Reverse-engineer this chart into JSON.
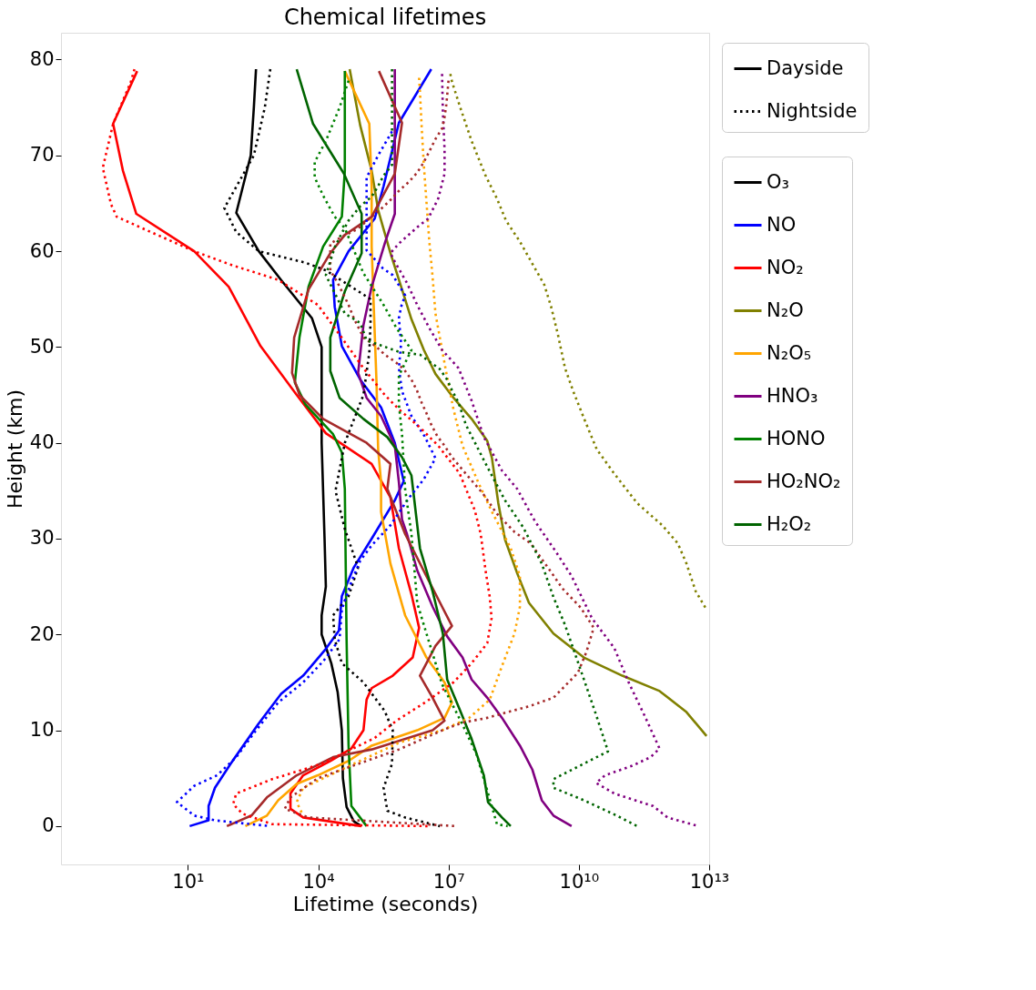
{
  "chart_data": {
    "type": "line",
    "title": "Chemical lifetimes",
    "xlabel": "Lifetime (seconds)",
    "ylabel": "Height (km)",
    "log": "x",
    "grid": false,
    "legend": "right",
    "xlim": [
      0.012,
      10000000000000.0
    ],
    "xticks": [
      {
        "value": 10,
        "label": "10¹"
      },
      {
        "value": 10000.0,
        "label": "10⁴"
      },
      {
        "value": 10000000.0,
        "label": "10⁷"
      },
      {
        "value": 10000000000.0,
        "label": "10¹⁰"
      },
      {
        "value": 10000000000000.0,
        "label": "10¹³"
      }
    ],
    "ylim": [
      -4,
      82.8
    ],
    "yticks": [
      0,
      10,
      20,
      30,
      40,
      50,
      60,
      70,
      80
    ],
    "series": [
      {
        "name": "Dayside",
        "color": "#000000",
        "line_style": "solid"
      },
      {
        "name": "Nightside",
        "color": "#000000",
        "line_style": "dotted"
      },
      {
        "name": "O₃",
        "color": "#000000",
        "line_style": "solid",
        "x": [
          370,
          330,
          280,
          130,
          430,
          1400,
          7200,
          12000.0,
          12000.0,
          14000.0,
          15000.0,
          12000.0,
          12000.0,
          20000.0,
          28000.0,
          35000.0,
          37000.0,
          45000.0,
          66000.0,
          98000.0
        ],
        "values": [
          79,
          75,
          70,
          64,
          60,
          57,
          53,
          50,
          40,
          30,
          25,
          22,
          20,
          17,
          14,
          10,
          5,
          2,
          0.5,
          0
        ]
      },
      {
        "name": "NO",
        "color": "#0000ff",
        "line_style": "solid",
        "x": [
          4000000.0,
          720000.0,
          320000.0,
          200000.0,
          50000.0,
          22000.0,
          24000.0,
          35000.0,
          93000.0,
          280000.0,
          580000.0,
          930000.0,
          580000.0,
          170000.0,
          66000.0,
          35000.0,
          30000.0,
          15000.0,
          4500.0,
          1400.0,
          410,
          96,
          42,
          30,
          30,
          11
        ],
        "values": [
          79,
          73.4,
          66.8,
          63.4,
          60,
          57,
          54.2,
          50.1,
          46.6,
          43.7,
          40,
          36,
          34,
          30,
          27,
          24,
          20.4,
          18.5,
          15.7,
          13.8,
          10.6,
          6.5,
          4,
          2.1,
          0.6,
          0
        ]
      },
      {
        "name": "NO₂",
        "color": "#ff0000",
        "line_style": "solid",
        "x": [
          0.68,
          0.19,
          0.32,
          0.65,
          14,
          87,
          470,
          3200,
          15000.0,
          170000.0,
          460000.0,
          720000.0,
          1400000.0,
          2100000.0,
          1500000.0,
          520000.0,
          170000.0,
          130000.0,
          110000.0,
          58000.0,
          19000.0,
          4500.0,
          2300.0,
          2300.0,
          4500.0,
          98000.0
        ],
        "values": [
          78.8,
          73.3,
          68.4,
          63.9,
          60,
          56.3,
          50.1,
          45,
          41,
          37.8,
          34.3,
          29,
          24.2,
          20.7,
          17.6,
          15.7,
          14.4,
          13.2,
          10,
          8.1,
          6.8,
          5.3,
          3.4,
          1.8,
          0.9,
          0
        ]
      },
      {
        "name": "N₂O",
        "color": "#808000",
        "line_style": "solid",
        "x": [
          53000.0,
          93000.0,
          170000.0,
          240000.0,
          460000.0,
          850000.0,
          1400000.0,
          2700000.0,
          5000000.0,
          13000000.0,
          34000000.0,
          78000000.0,
          100000000.0,
          140000000.0,
          200000000.0,
          380000000.0,
          710000000.0,
          2600000000.0,
          13000000000.0,
          100000000000.0,
          720000000000.0,
          3000000000000.0,
          8700000000000.0
        ],
        "values": [
          79,
          73.1,
          68.4,
          64.3,
          59.8,
          56,
          52.9,
          49.7,
          47.2,
          44.7,
          42.5,
          40.2,
          38.4,
          33.7,
          29.9,
          26.4,
          23.3,
          20.1,
          17.6,
          15.7,
          14.1,
          11.9,
          9.4
        ]
      },
      {
        "name": "N₂O₅",
        "color": "#ffa500",
        "line_style": "solid",
        "x": [
          41000.0,
          150000.0,
          170000.0,
          170000.0,
          190000.0,
          220000.0,
          240000.0,
          280000.0,
          280000.0,
          460000.0,
          1000000.0,
          3100000.0,
          8100000.0,
          12000000.0,
          8100000.0,
          1900000.0,
          170000.0,
          50000.0,
          9800.0,
          3200.0,
          1200.0,
          660,
          210
        ],
        "values": [
          78.8,
          73.3,
          66.8,
          60.5,
          54.2,
          46.3,
          39.3,
          35.9,
          32.8,
          27.4,
          22,
          17.6,
          15,
          12.9,
          11.3,
          10,
          8.4,
          6.8,
          5.3,
          4.4,
          2.7,
          1.1,
          0
        ]
      },
      {
        "name": "HNO₃",
        "color": "#800080",
        "line_style": "solid",
        "x": [
          580000.0,
          580000.0,
          350000.0,
          170000.0,
          110000.0,
          83000.0,
          130000.0,
          280000.0,
          580000.0,
          720000.0,
          850000.0,
          1100000.0,
          1900000.0,
          4300000.0,
          9300000.0,
          21000000.0,
          34000000.0,
          78000000.0,
          170000000.0,
          440000000.0,
          850000000.0,
          1400000000.0,
          2600000000.0,
          6800000000.0
        ],
        "values": [
          79,
          63.9,
          61,
          56.3,
          52.3,
          47.3,
          44.7,
          42.8,
          39.7,
          35.9,
          32,
          30.5,
          26.7,
          22.9,
          19.8,
          17.6,
          15.3,
          13.4,
          11.3,
          8.4,
          5.9,
          2.7,
          1.1,
          0
        ]
      },
      {
        "name": "HONO",
        "color": "#008000",
        "line_style": "solid",
        "x": [
          41000.0,
          41000.0,
          35000.0,
          13000.0,
          6000.0,
          3700.0,
          2900.0,
          5100.0,
          22000.0,
          35000.0,
          41000.0,
          45000.0,
          50000.0,
          58000.0,
          130000.0
        ],
        "values": [
          78.8,
          68.4,
          63.6,
          60.5,
          56.3,
          51,
          46.3,
          44,
          40.9,
          39,
          35.2,
          19.5,
          8.4,
          2.1,
          0
        ]
      },
      {
        "name": "HO₂NO₂",
        "color": "#a52a2a",
        "line_style": "solid",
        "x": [
          250000.0,
          850000.0,
          580000.0,
          170000.0,
          41000.0,
          19000.0,
          6000.0,
          2800.0,
          2500.0,
          3700.0,
          13000.0,
          130000.0,
          460000.0,
          390000.0,
          1000000.0,
          3100000.0,
          7100000.0,
          12000000.0,
          5000000.0,
          2200000.0,
          4300000.0,
          8100000.0,
          4300000.0,
          170000.0,
          22000.0,
          3200.0,
          660,
          290,
          79
        ],
        "values": [
          78.8,
          73.4,
          68.1,
          63.6,
          61.7,
          59.8,
          56,
          51,
          47.3,
          45,
          42.5,
          40,
          37.8,
          35.2,
          30.5,
          26.1,
          22.9,
          20.9,
          18.8,
          15.7,
          13.4,
          11,
          10,
          8,
          7.2,
          5.3,
          3,
          1.1,
          0
        ]
      },
      {
        "name": "H₂O₂",
        "color": "#006400",
        "line_style": "solid",
        "x": [
          3200.0,
          7600.0,
          39000.0,
          100000.0,
          100000.0,
          41000.0,
          19000.0,
          19000.0,
          31000.0,
          110000.0,
          390000.0,
          850000.0,
          1400000.0,
          2200000.0,
          4300000.0,
          7400000.0,
          9300000.0,
          18000000.0,
          34000000.0,
          65000000.0,
          81000000.0,
          170000000.0,
          270000000.0
        ],
        "values": [
          79,
          73.3,
          68.1,
          63.9,
          59.8,
          55.8,
          51,
          47.5,
          44.7,
          42.5,
          40.6,
          38.5,
          36.6,
          29,
          24.5,
          20.1,
          15.3,
          12.2,
          9.1,
          5.3,
          2.5,
          0.9,
          0
        ]
      },
      {
        "color": "#000000",
        "line_style": "dotted",
        "x": [
          790,
          590,
          330,
          69,
          130,
          430,
          5100,
          15000.0,
          160000.0,
          160000.0,
          150000.0,
          110000.0,
          41000.0,
          25000.0,
          41000.0,
          83000.0,
          50000.0,
          22000.0,
          24000.0,
          35000.0,
          110000.0,
          340000.0,
          520000.0,
          500000.0,
          320000.0,
          390000.0,
          1000000.0,
          6300000.0
        ],
        "values": [
          79,
          75,
          70,
          64.5,
          62,
          60,
          58.8,
          58,
          55,
          52.5,
          49.4,
          45,
          40,
          35,
          31,
          27,
          24,
          22,
          19.5,
          17,
          15,
          12,
          10,
          6.5,
          4,
          1.6,
          0.9,
          0
        ]
      },
      {
        "color": "#0000ff",
        "line_style": "dotted",
        "x": [
          500000.0,
          240000.0,
          130000.0,
          130000.0,
          130000.0,
          130000.0,
          310000.0,
          520000.0,
          1000000.0,
          810000.0,
          720000.0,
          810000.0,
          720000.0,
          850000.0,
          1400000.0,
          2800000.0,
          5000000.0,
          2700000.0,
          1200000.0,
          460000.0,
          170000.0,
          93000.0,
          58000.0,
          35000.0,
          31000.0,
          13000.0,
          4500.0,
          1200.0,
          330,
          130,
          47,
          14,
          5.6,
          14,
          42,
          760
        ],
        "values": [
          72.5,
          70,
          67.7,
          65.3,
          63.3,
          60.1,
          58.2,
          57.5,
          55.4,
          54.2,
          53,
          50.4,
          47.8,
          45.4,
          42.8,
          40.7,
          38.4,
          36.2,
          34.2,
          31.4,
          29.3,
          27.7,
          25.5,
          22.6,
          19.5,
          17.2,
          15,
          12.9,
          9.7,
          7.2,
          5.3,
          4.2,
          2.5,
          1.1,
          0.6,
          0
        ]
      },
      {
        "color": "#ff0000",
        "line_style": "dotted",
        "x": [
          0.59,
          0.48,
          0.19,
          0.11,
          0.17,
          0.23,
          1.4,
          14,
          96,
          1200,
          9800,
          31000.0,
          110000.0,
          340000.0,
          720000.0,
          2200000.0,
          5800000.0,
          18000000.0,
          40000000.0,
          55000000.0,
          71000000.0,
          89000000.0,
          98000000.0,
          78000000.0,
          34000000.0,
          13000000.0,
          3100000.0,
          630000.0,
          200000.0,
          12000.0,
          870,
          130,
          110,
          180,
          870,
          3400000.0
        ],
        "values": [
          79,
          77.6,
          73.3,
          68.7,
          64.9,
          63.6,
          62,
          60,
          58.6,
          57,
          54.4,
          51.3,
          47.8,
          45,
          43.5,
          41.6,
          39.7,
          36.8,
          33,
          30.5,
          26.7,
          23.9,
          21.7,
          19.1,
          17,
          15,
          13,
          11,
          9.2,
          6.5,
          4.9,
          3.4,
          2.3,
          1.3,
          0.2,
          0
        ]
      },
      {
        "color": "#808000",
        "line_style": "dotted",
        "x": [
          11000000.0,
          12000000.0,
          18000000.0,
          34000000.0,
          71000000.0,
          130000000.0,
          210000000.0,
          440000000.0,
          850000000.0,
          1600000000.0,
          2300000000.0,
          3300000000.0,
          4800000000.0,
          7400000000.0,
          13000000000.0,
          26000000000.0,
          65000000000.0,
          220000000000.0,
          830000000000.0,
          1900000000000.0,
          3000000000000.0,
          4900000000000.0,
          8700000000000.0
        ],
        "values": [
          78.5,
          77.7,
          75.2,
          71.5,
          67.9,
          65.5,
          63.2,
          61,
          58.7,
          56.5,
          54.2,
          51.3,
          47.8,
          45.4,
          42.6,
          39.3,
          36.8,
          33.7,
          31.4,
          29.5,
          27.4,
          24.5,
          22.6
        ]
      },
      {
        "color": "#ffa500",
        "line_style": "dotted",
        "x": [
          2100000.0,
          2200000.0,
          2400000.0,
          2700000.0,
          3100000.0,
          3600000.0,
          4300000.0,
          5000000.0,
          6300000.0,
          8900000.0,
          13000000.0,
          21000000.0,
          48000000.0,
          100000000.0,
          270000000.0,
          440000000.0,
          440000000.0,
          330000000.0,
          170000000.0,
          89000000.0,
          30000000.0,
          7100000.0,
          720000.0,
          66000.0,
          4500.0,
          3200.0,
          4500.0
        ],
        "values": [
          78.1,
          76.6,
          73.1,
          69,
          65.2,
          61.1,
          57.3,
          53.5,
          51,
          47.3,
          43.5,
          39.7,
          35.9,
          32.8,
          29,
          26.1,
          22.9,
          20.1,
          16.7,
          13.2,
          11.3,
          10,
          8.7,
          6.5,
          4,
          2.5,
          1.1
        ]
      },
      {
        "color": "#800080",
        "line_style": "dotted",
        "x": [
          7100000.0,
          7400000.0,
          8100000.0,
          8100000.0,
          5800000.0,
          3400000.0,
          1900000.0,
          720000.0,
          460000.0,
          580000.0,
          1100000.0,
          1900000.0,
          3600000.0,
          7100000.0,
          17000000.0,
          34000000.0,
          65000000.0,
          170000000.0,
          380000000.0,
          980000000.0,
          3000000000.0,
          6800000000.0,
          20000000000.0,
          65000000000.0,
          140000000000.0,
          320000000000.0,
          720000000000.0,
          450000000000.0,
          170000000000.0,
          40000000000.0,
          25000000000.0,
          65000000000.0,
          510000000000.0,
          1100000000000.0,
          5600000000000.0
        ],
        "values": [
          78.5,
          74.7,
          70.6,
          68.1,
          65.5,
          63.4,
          62.5,
          60.8,
          59.8,
          58.9,
          56.7,
          54.4,
          52,
          49.7,
          47.8,
          44.4,
          40.6,
          37.1,
          35.2,
          31.8,
          28.6,
          26.1,
          21.7,
          18.6,
          15,
          11.6,
          8.1,
          7.2,
          6.3,
          5.3,
          4.5,
          3.4,
          2.1,
          0.9,
          0
        ]
      },
      {
        "color": "#008000",
        "line_style": "dotted",
        "x": [
          50000.0,
          31000.0,
          15000.0,
          8300.0,
          8300.0,
          13000.0,
          24000.0,
          41000.0,
          110000.0,
          310000.0,
          630000.0,
          1400000.0,
          720000.0,
          720000.0,
          850000.0,
          1000000.0,
          1400000.0,
          1900000.0,
          3100000.0,
          7100000.0,
          21000000.0,
          44000000.0,
          78000000.0,
          130000000.0,
          230000000.0
        ],
        "values": [
          77.8,
          75,
          71.5,
          69.3,
          67.7,
          65.8,
          63.6,
          62.4,
          57.7,
          54.5,
          52,
          49.7,
          47,
          44,
          40.9,
          35.2,
          30.5,
          23.3,
          20.1,
          14.8,
          10.6,
          7.5,
          3.7,
          0.2,
          0
        ]
      },
      {
        "color": "#a52a2a",
        "line_style": "dotted",
        "x": [
          10000000.0,
          8900000.0,
          8100000.0,
          7100000.0,
          5000000.0,
          3600000.0,
          2700000.0,
          1900000.0,
          1200000.0,
          720000.0,
          500000.0,
          310000.0,
          79000.0,
          35000.0,
          19000.0,
          19000.0,
          28000.0,
          50000.0,
          66000.0,
          110000.0,
          210000.0,
          340000.0,
          580000.0,
          930000.0,
          1400000.0,
          1900000.0,
          2400000.0,
          3100000.0,
          4000000.0,
          5500000.0,
          8100000.0,
          12000000.0,
          27000000.0,
          62000000.0,
          130000000.0,
          330000000.0,
          780000000.0,
          2000000000.0,
          4200000000.0,
          11000000000.0,
          22000000000.0,
          15000000000.0,
          9500000000.0,
          2600000000.0,
          710000000.0,
          230000000.0,
          78000000.0,
          21000000.0,
          8100000.0,
          720000.0,
          9800.0,
          2300.0,
          1700.0,
          6000.0,
          15000000.0
        ],
        "values": [
          77.8,
          75.3,
          74,
          72.8,
          71.7,
          70.4,
          69.3,
          68.2,
          67.2,
          66.3,
          65.5,
          64.6,
          62.3,
          61.5,
          60.8,
          58,
          56.7,
          54.4,
          53,
          51,
          50.1,
          49.2,
          48.5,
          47.7,
          46.6,
          45.4,
          44.2,
          43.1,
          41.9,
          40.7,
          39.7,
          38.5,
          36.6,
          34.7,
          32.6,
          30.7,
          29.5,
          26.9,
          24.8,
          22.8,
          20.7,
          18.2,
          16,
          13.4,
          12.5,
          11.9,
          11.3,
          10.8,
          10.1,
          8,
          5,
          3,
          1.8,
          0.9,
          0
        ]
      },
      {
        "color": "#006400",
        "line_style": "dotted",
        "x": [
          500000.0,
          500000.0,
          320000.0,
          240000.0,
          170000.0,
          93000.0,
          50000.0,
          35000.0,
          24000.0,
          15000.0,
          41000.0,
          93000.0,
          130000.0,
          720000.0,
          2200000.0,
          6300000.0,
          9300000.0,
          12000000.0,
          17000000.0,
          25000000.0,
          44000000.0,
          78000000.0,
          200000000.0,
          520000000.0,
          1400000000.0,
          2600000000.0,
          4800000000.0,
          11000000000.0,
          25000000000.0,
          47000000000.0,
          2600000000.0,
          2600000000.0,
          13000000000.0,
          74000000000.0,
          220000000000.0
        ],
        "values": [
          79,
          69,
          67.9,
          66.8,
          65.7,
          64.7,
          63.2,
          61.9,
          60.4,
          57.5,
          53.5,
          52.5,
          50.7,
          49.5,
          49.2,
          47.7,
          46.6,
          45.5,
          44.2,
          41.9,
          39.7,
          37.5,
          34,
          31.2,
          27.4,
          23.9,
          21,
          16.3,
          11.6,
          7.8,
          4.9,
          4,
          2.7,
          1.1,
          0
        ]
      }
    ]
  }
}
